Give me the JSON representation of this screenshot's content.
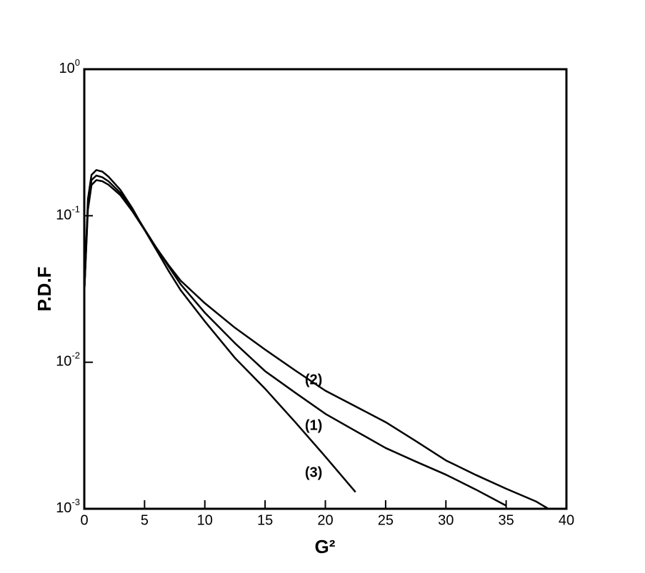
{
  "chart_data": {
    "type": "line",
    "xlabel": "G²",
    "ylabel": "P.D.F",
    "log_y": true,
    "color": "#000000",
    "xlim": [
      0,
      40
    ],
    "xticks": [
      0,
      5,
      10,
      15,
      20,
      25,
      30,
      35,
      40
    ],
    "ylim": [
      0.001,
      1
    ],
    "yticks": [
      {
        "value": 0.001,
        "label": "10",
        "exponent": "-3"
      },
      {
        "value": 0.01,
        "label": "10",
        "exponent": "-2"
      },
      {
        "value": 0.1,
        "label": "10",
        "exponent": "-1"
      },
      {
        "value": 1,
        "label": "10",
        "exponent": "0"
      }
    ],
    "x": [
      0,
      0.3,
      0.6,
      1,
      1.5,
      2,
      3,
      4,
      5,
      6,
      7,
      8,
      10,
      12.5,
      15,
      17.5,
      20,
      22.5,
      25,
      27.5,
      30,
      32.5,
      35,
      37.5,
      38.5
    ],
    "series": [
      {
        "color": "#000000",
        "values": [
          0.03,
          0.13,
          0.19,
          0.205,
          0.2,
          0.185,
          0.15,
          0.112,
          0.08,
          0.058,
          0.042,
          0.031,
          0.019,
          0.0107,
          0.0066,
          0.0039,
          0.00227,
          0.0013,
          null,
          null,
          null,
          null,
          null,
          null,
          null
        ]
      },
      {
        "color": "#000000",
        "values": [
          0.03,
          0.12,
          0.175,
          0.188,
          0.183,
          0.172,
          0.143,
          0.11,
          0.081,
          0.06,
          0.045,
          0.034,
          0.0218,
          0.0135,
          0.0087,
          0.0062,
          0.00445,
          0.0034,
          0.0026,
          0.0021,
          0.00171,
          0.00135,
          0.00105,
          null,
          null
        ]
      },
      {
        "color": "#000000",
        "values": [
          0.03,
          0.11,
          0.162,
          0.175,
          0.172,
          0.163,
          0.138,
          0.107,
          0.08,
          0.06,
          0.046,
          0.036,
          0.0253,
          0.0172,
          0.0122,
          0.0088,
          0.0064,
          0.005,
          0.0039,
          0.0029,
          0.00214,
          0.0017,
          0.00137,
          0.00112,
          0.001
        ]
      }
    ],
    "annotations": [
      {
        "text": "(2)",
        "x": 19.5,
        "y": 0.0075
      },
      {
        "text": "(1)",
        "x": 19.5,
        "y": 0.00367
      },
      {
        "text": "(3)",
        "x": 19.5,
        "y": 0.00175
      }
    ]
  }
}
